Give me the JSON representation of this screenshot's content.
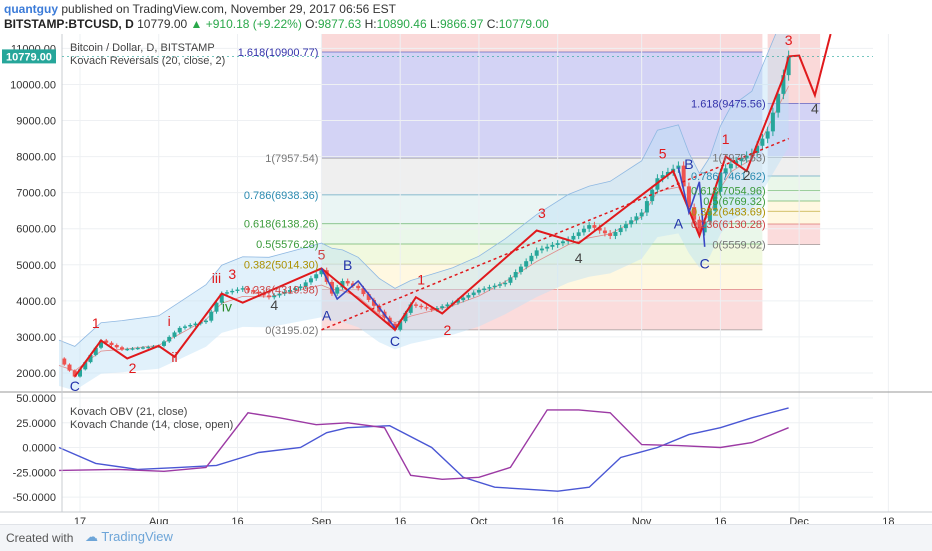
{
  "header": {
    "user": "quantguy",
    "published": "published on TradingView.com, November 29, 2017 06:56 EST",
    "symbol": "BITSTAMP:BTCUSD, D",
    "last": "10779.00",
    "change": "▲ +910.18 (+9.22%)",
    "o": "9877.63",
    "h": "10890.46",
    "l": "9866.97",
    "c": "10779.00"
  },
  "legend": {
    "title": "Bitcoin / Dollar, D, BITSTAMP",
    "indicator1": "Kovach Reversals (20, close, 2)",
    "osc1": "Kovach OBV (21, close)",
    "osc2": "Kovach Chande (14, close, open)"
  },
  "colors": {
    "up": "#26a69a",
    "down": "#ef5350",
    "wave": "#e0191c",
    "abc": "#2233aa",
    "obv": "#4a57d4",
    "chande": "#9c3aa4",
    "band": "#bde0f7"
  },
  "chart_data": [
    {
      "type": "line",
      "title": "Bitcoin / Dollar, D, BITSTAMP",
      "ylim": [
        1500,
        11400
      ],
      "y_ticks": [
        2000,
        3000,
        4000,
        5000,
        6000,
        7000,
        8000,
        9000,
        10000,
        11000
      ],
      "y_tick_labels": [
        "2000.00",
        "3000.00",
        "4000.00",
        "5000.00",
        "6000.00",
        "7000.00",
        "8000.00",
        "9000.00",
        "10000.00",
        "11000.00"
      ],
      "x_dates": [
        "2017-07-17",
        "2017-08-01",
        "2017-08-16",
        "2017-09-01",
        "2017-09-16",
        "2017-10-01",
        "2017-10-16",
        "2017-11-01",
        "2017-11-16",
        "2017-12-01",
        "2017-12-18"
      ],
      "x_tick_labels": [
        "17",
        "Aug",
        "16",
        "Sep",
        "16",
        "Oct",
        "16",
        "Nov",
        "16",
        "Dec",
        "18"
      ],
      "last_price": "10779.00",
      "price": {
        "name": "BTCUSD",
        "x": [
          "2017-07-13",
          "2017-07-16",
          "2017-07-18",
          "2017-07-21",
          "2017-07-25",
          "2017-08-01",
          "2017-08-05",
          "2017-08-10",
          "2017-08-13",
          "2017-08-17",
          "2017-08-22",
          "2017-08-28",
          "2017-09-01",
          "2017-09-03",
          "2017-09-05",
          "2017-09-08",
          "2017-09-12",
          "2017-09-15",
          "2017-09-18",
          "2017-09-22",
          "2017-09-26",
          "2017-10-01",
          "2017-10-06",
          "2017-10-12",
          "2017-10-18",
          "2017-10-22",
          "2017-10-26",
          "2017-11-01",
          "2017-11-04",
          "2017-11-08",
          "2017-11-10",
          "2017-11-12",
          "2017-11-14",
          "2017-11-16",
          "2017-11-18",
          "2017-11-22",
          "2017-11-25",
          "2017-11-29"
        ],
        "y": [
          2400,
          1900,
          2300,
          2900,
          2650,
          2750,
          3250,
          3450,
          4200,
          4350,
          4100,
          4400,
          4850,
          4200,
          4550,
          4350,
          3700,
          3200,
          3900,
          3750,
          3950,
          4300,
          4500,
          5400,
          5700,
          6100,
          5800,
          6450,
          7400,
          7750,
          6600,
          5900,
          6500,
          7550,
          7800,
          8100,
          8700,
          10779
        ]
      },
      "fib_left": {
        "levels": [
          "0(3195.02)",
          "0.236(4319.98)",
          "0.382(5014.30)",
          "0.5(5576.28)",
          "0.618(6138.26)",
          "0.786(6938.36)",
          "1(7957.54)",
          "1.618(10900.77)"
        ],
        "values": [
          3195.02,
          4319.98,
          5014.3,
          5576.28,
          6138.26,
          6938.36,
          7957.54,
          10900.77
        ]
      },
      "fib_right": {
        "levels": [
          "0(5559.02)",
          "0.236(6130.28)",
          "0.382(6483.69)",
          "0.5(6769.32)",
          "0.618(7054.96)",
          "0.786(7461.62)",
          "1(7979.63)",
          "1.618(9475.56)"
        ],
        "values": [
          5559.02,
          6130.28,
          6483.69,
          6769.32,
          7054.96,
          7461.62,
          7979.63,
          9475.56
        ]
      },
      "wave_labels": [
        "C",
        "1",
        "2",
        "i",
        "ii",
        "iii",
        "iv",
        "3",
        "4",
        "5",
        "A",
        "B",
        "C",
        "1",
        "2",
        "3",
        "4",
        "5",
        "A",
        "B",
        "C",
        "1",
        "2",
        "3",
        "4"
      ]
    },
    {
      "type": "line",
      "ylim": [
        -65,
        55
      ],
      "y_ticks": [
        -50,
        -25,
        0,
        25,
        50
      ],
      "y_tick_labels": [
        "-50.0000",
        "-25.0000",
        "0.0000",
        "25.0000",
        "50.0000"
      ],
      "series": [
        {
          "name": "Kovach OBV (21, close)",
          "x": [
            "2017-07-13",
            "2017-07-20",
            "2017-07-28",
            "2017-08-05",
            "2017-08-12",
            "2017-08-20",
            "2017-08-28",
            "2017-09-02",
            "2017-09-06",
            "2017-09-14",
            "2017-09-22",
            "2017-09-28",
            "2017-10-04",
            "2017-10-10",
            "2017-10-16",
            "2017-10-22",
            "2017-10-28",
            "2017-11-04",
            "2017-11-10",
            "2017-11-16",
            "2017-11-22",
            "2017-11-29"
          ],
          "values": [
            0,
            -16,
            -22,
            -20,
            -18,
            -5,
            0,
            15,
            20,
            22,
            0,
            -30,
            -40,
            -42,
            -44,
            -40,
            -10,
            0,
            13,
            20,
            30,
            40
          ]
        },
        {
          "name": "Kovach Chande (14, close, open)",
          "x": [
            "2017-07-13",
            "2017-07-24",
            "2017-08-02",
            "2017-08-10",
            "2017-08-18",
            "2017-08-24",
            "2017-08-31",
            "2017-09-06",
            "2017-09-13",
            "2017-09-18",
            "2017-09-24",
            "2017-10-01",
            "2017-10-07",
            "2017-10-14",
            "2017-10-20",
            "2017-10-26",
            "2017-11-01",
            "2017-11-08",
            "2017-11-16",
            "2017-11-22",
            "2017-11-29"
          ],
          "values": [
            -23,
            -22,
            -24,
            -20,
            35,
            30,
            23,
            25,
            20,
            -28,
            -32,
            -30,
            -20,
            38,
            38,
            35,
            3,
            2,
            0,
            5,
            20
          ]
        }
      ]
    }
  ]
}
